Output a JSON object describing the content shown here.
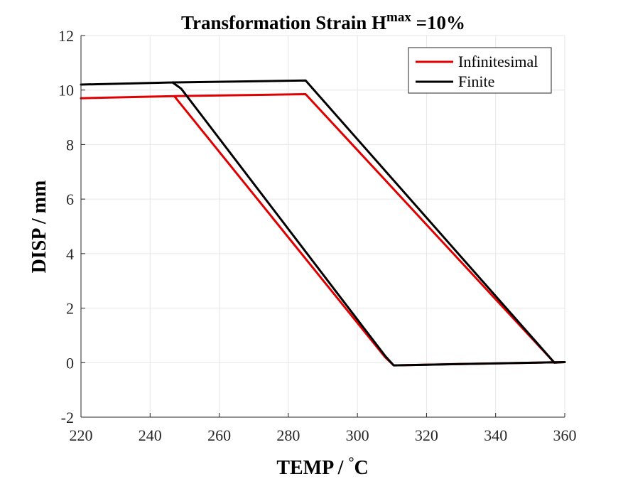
{
  "chart_data": {
    "type": "line",
    "title_main": "Transformation Strain H",
    "title_sup": "max",
    "title_tail": " =10%",
    "xlabel_main": "TEMP / ",
    "xlabel_deg": "°",
    "xlabel_unit": "C",
    "ylabel": "DISP / mm",
    "xlim": [
      220,
      360
    ],
    "ylim": [
      -2,
      12
    ],
    "xticks": [
      220,
      240,
      260,
      280,
      300,
      320,
      340,
      360
    ],
    "yticks": [
      -2,
      0,
      2,
      4,
      6,
      8,
      10,
      12
    ],
    "grid": true,
    "legend_position": "top-right",
    "series": [
      {
        "name": "Infinitesimal",
        "color": "#e00000",
        "points": [
          [
            220,
            9.7
          ],
          [
            247,
            9.78
          ],
          [
            285,
            9.85
          ],
          [
            357,
            0
          ],
          [
            360,
            0.02
          ],
          [
            310.5,
            -0.1
          ],
          [
            308,
            0.2
          ],
          [
            247,
            9.78
          ]
        ]
      },
      {
        "name": "Finite",
        "color": "#000000",
        "points": [
          [
            220,
            10.2
          ],
          [
            246.5,
            10.28
          ],
          [
            285,
            10.35
          ],
          [
            357,
            0
          ],
          [
            360,
            0.02
          ],
          [
            310.5,
            -0.1
          ],
          [
            308,
            0.25
          ],
          [
            249,
            10.05
          ],
          [
            246.5,
            10.28
          ]
        ]
      }
    ]
  }
}
